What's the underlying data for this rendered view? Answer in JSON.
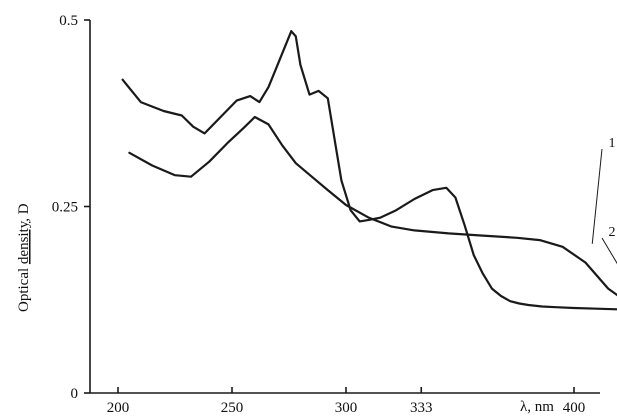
{
  "chart_data": {
    "type": "line",
    "title": "",
    "xlabel": "λ, nm",
    "ylabel": "Optical density, D",
    "ylabel_parts": {
      "prefix": "Optical ",
      "underlined": "density",
      "suffix": ", D"
    },
    "xlim": [
      200,
      445
    ],
    "ylim": [
      0,
      0.5
    ],
    "x_ticks": [
      200,
      250,
      300,
      333,
      400
    ],
    "x_tick_labels": [
      "200",
      "250",
      "300",
      "333",
      "400"
    ],
    "y_ticks": [
      0,
      0.25,
      0.5
    ],
    "y_tick_labels": [
      "0",
      "0.25",
      "0.5"
    ],
    "grid": false,
    "legend": "none",
    "series": [
      {
        "name": "1",
        "x": [
          202,
          210,
          220,
          228,
          233,
          238,
          245,
          252,
          258,
          262,
          266,
          270,
          274,
          276,
          278,
          280,
          284,
          288,
          292,
          295,
          298,
          302,
          306,
          310,
          315,
          322,
          330,
          338,
          344,
          348,
          352,
          356,
          360,
          364,
          368,
          372,
          376,
          380,
          386,
          392,
          400,
          410,
          420,
          430,
          442
        ],
        "values": [
          0.42,
          0.39,
          0.378,
          0.372,
          0.357,
          0.348,
          0.37,
          0.392,
          0.398,
          0.39,
          0.41,
          0.44,
          0.47,
          0.485,
          0.478,
          0.44,
          0.4,
          0.405,
          0.395,
          0.34,
          0.285,
          0.245,
          0.23,
          0.232,
          0.235,
          0.245,
          0.26,
          0.272,
          0.275,
          0.262,
          0.225,
          0.185,
          0.16,
          0.14,
          0.13,
          0.123,
          0.12,
          0.118,
          0.116,
          0.115,
          0.114,
          0.113,
          0.112,
          0.111,
          0.11
        ]
      },
      {
        "name": "2",
        "x": [
          205,
          215,
          225,
          232,
          240,
          248,
          255,
          260,
          266,
          272,
          278,
          285,
          292,
          300,
          310,
          320,
          330,
          345,
          360,
          375,
          385,
          395,
          405,
          415,
          425,
          435,
          442
        ],
        "values": [
          0.322,
          0.305,
          0.292,
          0.29,
          0.31,
          0.335,
          0.355,
          0.37,
          0.36,
          0.332,
          0.308,
          0.29,
          0.272,
          0.252,
          0.235,
          0.223,
          0.218,
          0.214,
          0.211,
          0.208,
          0.205,
          0.196,
          0.175,
          0.14,
          0.118,
          0.111,
          0.11
        ]
      }
    ],
    "annotations": [
      {
        "text": "1",
        "series": "1",
        "anchor_x": 408,
        "anchor_y": 0.2
      },
      {
        "text": "2",
        "series": "2",
        "anchor_x": 430,
        "anchor_y": 0.117
      }
    ]
  }
}
